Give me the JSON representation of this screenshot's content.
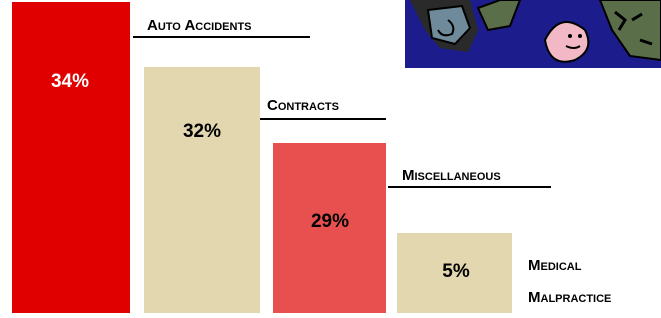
{
  "bars": [
    {
      "label": "34%",
      "category": [
        "Auto Accidents"
      ]
    },
    {
      "label": "32%",
      "category": [
        "Contracts"
      ]
    },
    {
      "label": "29%",
      "category": [
        "Miscellaneous"
      ]
    },
    {
      "label": "5%",
      "category": [
        "Medical",
        "Malpractice"
      ]
    }
  ]
}
